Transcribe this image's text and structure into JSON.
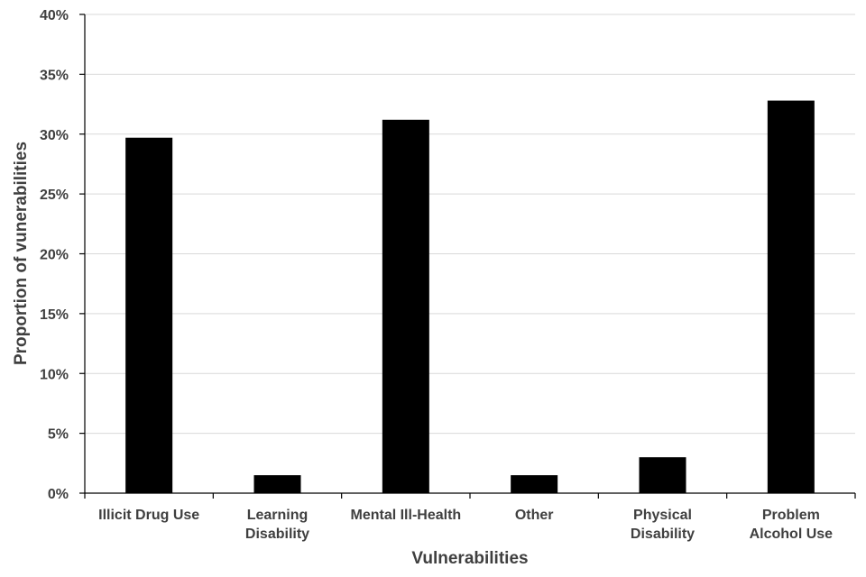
{
  "chart_data": {
    "type": "bar",
    "title": "",
    "xlabel": "Vulnerabilities",
    "ylabel": "Proportion of vunerabilities",
    "categories": [
      [
        "Illicit Drug Use"
      ],
      [
        "Learning",
        "Disability"
      ],
      [
        "Mental Ill-Health"
      ],
      [
        "Other"
      ],
      [
        "Physical",
        "Disability"
      ],
      [
        "Problem",
        "Alcohol Use"
      ]
    ],
    "values": [
      0.297,
      0.015,
      0.312,
      0.015,
      0.03,
      0.328
    ],
    "ylim": [
      0,
      0.4
    ],
    "yticks": [
      0,
      0.05,
      0.1,
      0.15,
      0.2,
      0.25,
      0.3,
      0.35,
      0.4
    ],
    "ytick_labels": [
      "0%",
      "5%",
      "10%",
      "15%",
      "20%",
      "25%",
      "30%",
      "35%",
      "40%"
    ],
    "grid": true,
    "bar_color": "#000000",
    "grid_color": "#d9d9d9",
    "text_color": "#3f3f3f"
  }
}
